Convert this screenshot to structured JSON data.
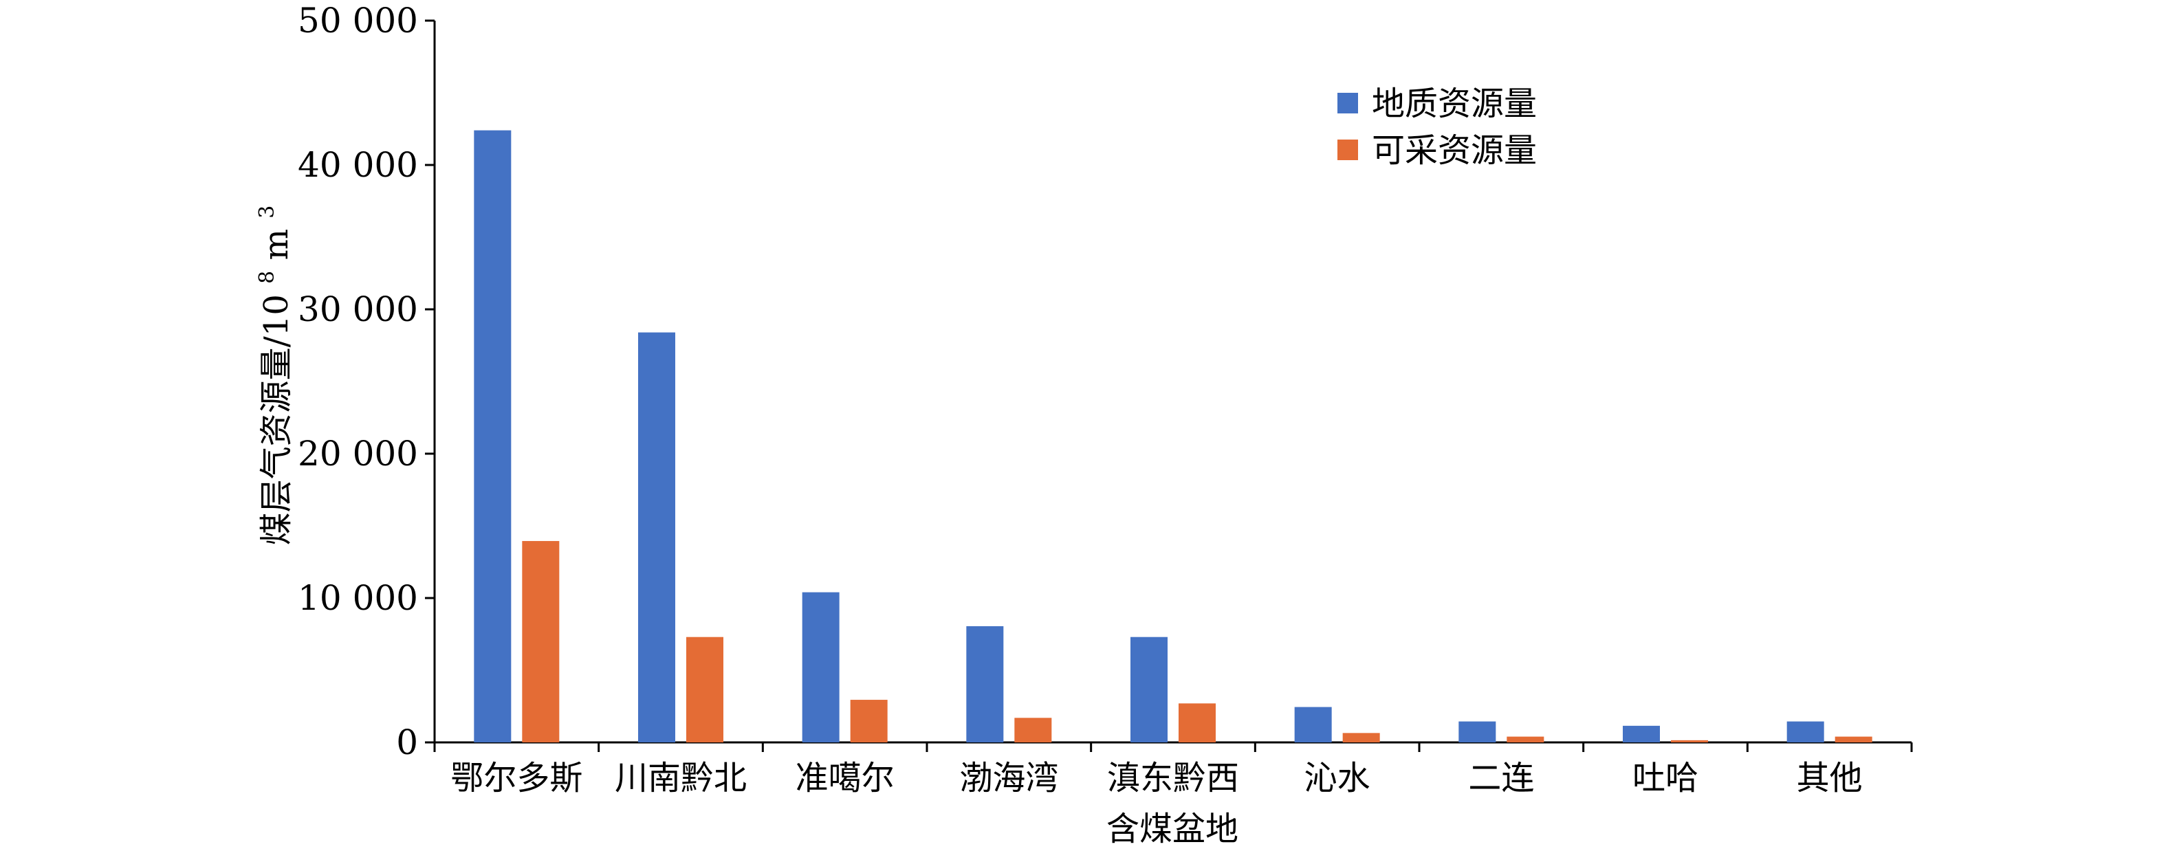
{
  "chart_data": {
    "type": "bar",
    "categories": [
      "鄂尔多斯",
      "川南黔北",
      "准噶尔",
      "渤海湾",
      "滇东黔西",
      "沁水",
      "二连",
      "吐哈",
      "其他"
    ],
    "xlabel": "含煤盆地",
    "ylabel_main": "煤层气资源量/10",
    "ylabel_exp": "8",
    "ylabel_unit": " m",
    "ylabel_unit_exp": "3",
    "ylim": [
      0,
      50000
    ],
    "y_ticks": [
      0,
      10000,
      20000,
      30000,
      40000,
      50000
    ],
    "y_tick_labels": [
      "0",
      "10 000",
      "20 000",
      "30 000",
      "40 000",
      "50 000"
    ],
    "legend_position": "top-right",
    "grid": false,
    "series": [
      {
        "name": "地质资源量",
        "color": "#4472C4",
        "values": [
          42400,
          28400,
          10400,
          8050,
          7300,
          2450,
          1450,
          1150,
          1450
        ]
      },
      {
        "name": "可采资源量",
        "color": "#E46C35",
        "values": [
          13950,
          7300,
          2950,
          1700,
          2700,
          650,
          400,
          150,
          400
        ]
      }
    ]
  }
}
